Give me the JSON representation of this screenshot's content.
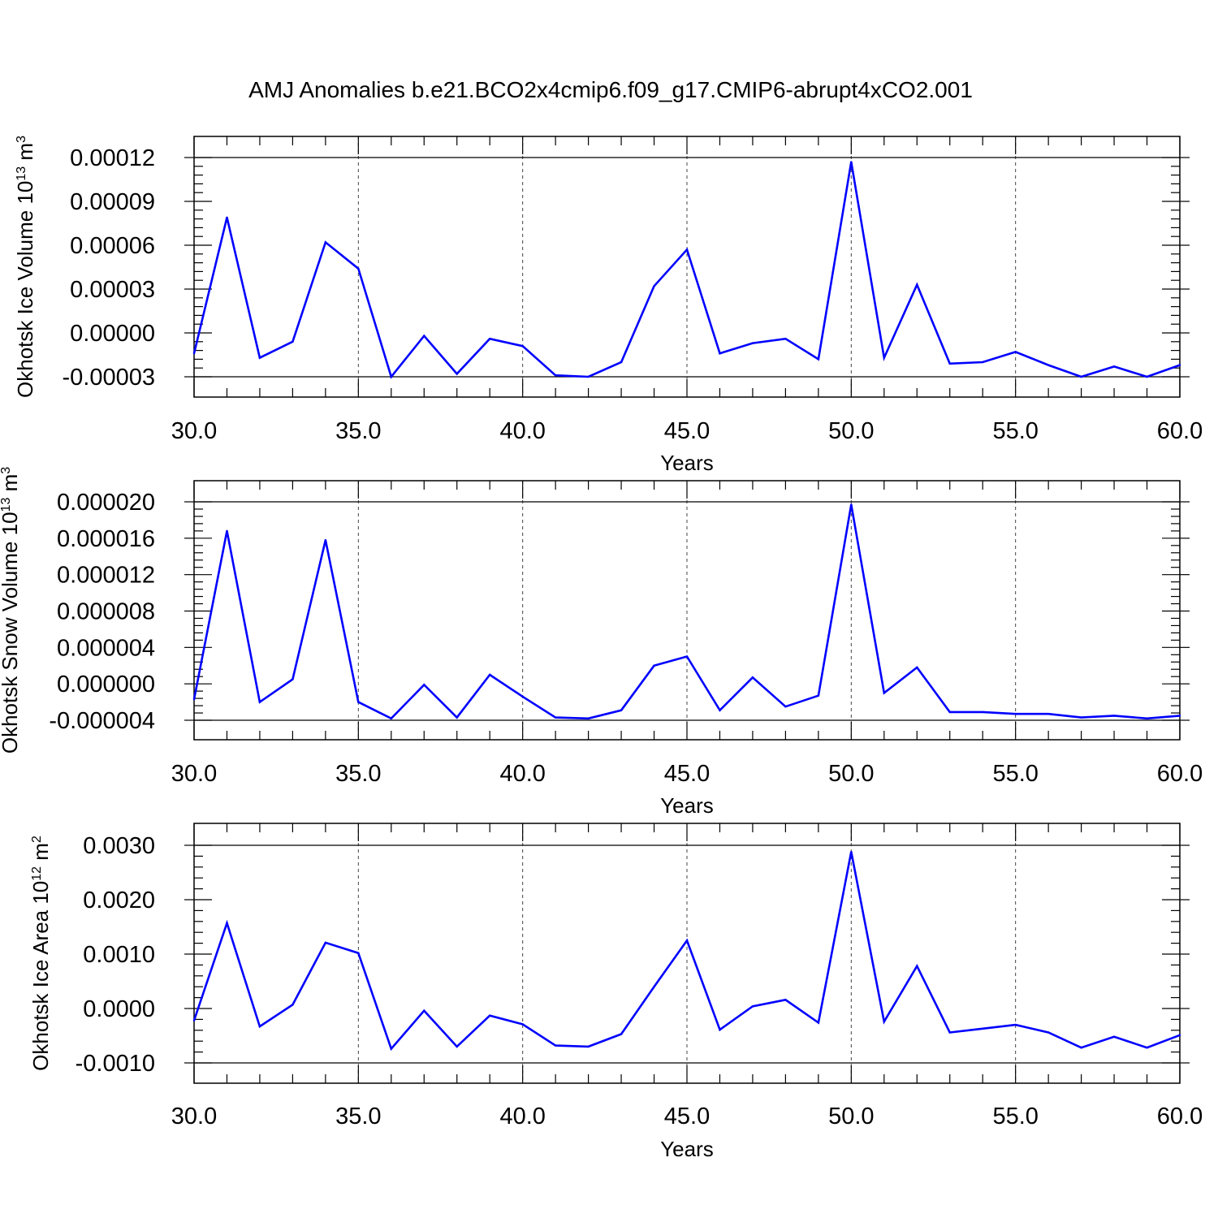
{
  "title": "AMJ Anomalies b.e21.BCO2x4cmip6.f09_g17.CMIP6-abrupt4xCO2.001",
  "colors": {
    "line": "#0000ff",
    "frame": "#000000",
    "grid": "#444444"
  },
  "chart_data": [
    {
      "type": "line",
      "ylabel": "Okhotsk Ice Volume 10",
      "ylabel_exponent": "13",
      "ylabel_unit": " m",
      "ylabel_unit_exponent": "3",
      "xlabel": "Years",
      "xlim": [
        30,
        60
      ],
      "ylim": [
        -3e-05,
        0.000122
      ],
      "xticks": [
        "30.0",
        "35.0",
        "40.0",
        "45.0",
        "50.0",
        "55.0",
        "60.0"
      ],
      "xtick_values": [
        30,
        35,
        40,
        45,
        50,
        55,
        60
      ],
      "yticks": [
        "-0.00003",
        "0.00000",
        "0.00003",
        "0.00006",
        "0.00009",
        "0.00012"
      ],
      "ytick_values": [
        -3e-05,
        0,
        3e-05,
        6e-05,
        9e-05,
        0.00012
      ],
      "ytick_minor_step": 6e-06,
      "xtick_minor_step": 1,
      "grid": "vertical dashed at major x ticks",
      "x": [
        30,
        31,
        32,
        33,
        34,
        35,
        36,
        37,
        38,
        39,
        40,
        41,
        42,
        43,
        44,
        45,
        46,
        47,
        48,
        49,
        50,
        51,
        52,
        53,
        54,
        55,
        56,
        57,
        58,
        59,
        60
      ],
      "values": [
        -1.4e-05,
        7.9e-05,
        -1.7e-05,
        -6e-06,
        6.2e-05,
        4.4e-05,
        -3e-05,
        -2e-06,
        -2.8e-05,
        -4e-06,
        -9e-06,
        -2.9e-05,
        -3e-05,
        -2e-05,
        3.2e-05,
        5.7e-05,
        -1.4e-05,
        -7e-06,
        -4e-06,
        -1.8e-05,
        0.000117,
        -1.7e-05,
        3.3e-05,
        -2.1e-05,
        -2e-05,
        -1.3e-05,
        -2.2e-05,
        -3e-05,
        -2.3e-05,
        -3e-05,
        -2.2e-05
      ]
    },
    {
      "type": "line",
      "ylabel": "Okhotsk Snow Volume 10",
      "ylabel_exponent": "13",
      "ylabel_unit": " m",
      "ylabel_unit_exponent": "3",
      "xlabel": "Years",
      "xlim": [
        30,
        60
      ],
      "ylim": [
        -4e-06,
        2.02e-05
      ],
      "xticks": [
        "30.0",
        "35.0",
        "40.0",
        "45.0",
        "50.0",
        "55.0",
        "60.0"
      ],
      "xtick_values": [
        30,
        35,
        40,
        45,
        50,
        55,
        60
      ],
      "yticks": [
        "-0.000004",
        "0.000000",
        "0.000004",
        "0.000008",
        "0.000012",
        "0.000016",
        "0.000020"
      ],
      "ytick_values": [
        -4e-06,
        0,
        4e-06,
        8e-06,
        1.2e-05,
        1.6e-05,
        2e-05
      ],
      "ytick_minor_step": 8e-07,
      "xtick_minor_step": 1,
      "grid": "vertical dashed at major x ticks",
      "x": [
        30,
        31,
        32,
        33,
        34,
        35,
        36,
        37,
        38,
        39,
        40,
        41,
        42,
        43,
        44,
        45,
        46,
        47,
        48,
        49,
        50,
        51,
        52,
        53,
        54,
        55,
        56,
        57,
        58,
        59,
        60
      ],
      "values": [
        -1.7e-06,
        1.68e-05,
        -2e-06,
        5e-07,
        1.58e-05,
        -2e-06,
        -3.8e-06,
        -1e-07,
        -3.7e-06,
        1e-06,
        -1.4e-06,
        -3.7e-06,
        -3.8e-06,
        -2.9e-06,
        2e-06,
        3e-06,
        -2.9e-06,
        7e-07,
        -2.5e-06,
        -1.3e-06,
        1.97e-05,
        -1e-06,
        1.8e-06,
        -3.1e-06,
        -3.1e-06,
        -3.3e-06,
        -3.3e-06,
        -3.7e-06,
        -3.5e-06,
        -3.8e-06,
        -3.5e-06
      ]
    },
    {
      "type": "line",
      "ylabel": "Okhotsk Ice Area 10",
      "ylabel_exponent": "12",
      "ylabel_unit": " m",
      "ylabel_unit_exponent": "2",
      "xlabel": "Years",
      "xlim": [
        30,
        60
      ],
      "ylim": [
        -0.001,
        0.003
      ],
      "xticks": [
        "30.0",
        "35.0",
        "40.0",
        "45.0",
        "50.0",
        "55.0",
        "60.0"
      ],
      "xtick_values": [
        30,
        35,
        40,
        45,
        50,
        55,
        60
      ],
      "yticks": [
        "-0.0010",
        "0.0000",
        "0.0010",
        "0.0020",
        "0.0030"
      ],
      "ytick_values": [
        -0.001,
        0,
        0.001,
        0.002,
        0.003
      ],
      "ytick_minor_step": 0.0002,
      "xtick_minor_step": 1,
      "grid": "vertical dashed at major x ticks",
      "x": [
        30,
        31,
        32,
        33,
        34,
        35,
        36,
        37,
        38,
        39,
        40,
        41,
        42,
        43,
        44,
        45,
        46,
        47,
        48,
        49,
        50,
        51,
        52,
        53,
        54,
        55,
        56,
        57,
        58,
        59,
        60
      ],
      "values": [
        -0.00022,
        0.00157,
        -0.00033,
        7e-05,
        0.00121,
        0.00102,
        -0.00074,
        -4e-05,
        -0.0007,
        -0.00013,
        -0.00029,
        -0.00068,
        -0.0007,
        -0.00047,
        0.0004,
        0.00125,
        -0.00039,
        4e-05,
        0.00016,
        -0.00026,
        0.00288,
        -0.00024,
        0.00078,
        -0.00044,
        -0.00037,
        -0.0003,
        -0.00044,
        -0.00072,
        -0.00052,
        -0.00072,
        -0.00049
      ]
    }
  ]
}
